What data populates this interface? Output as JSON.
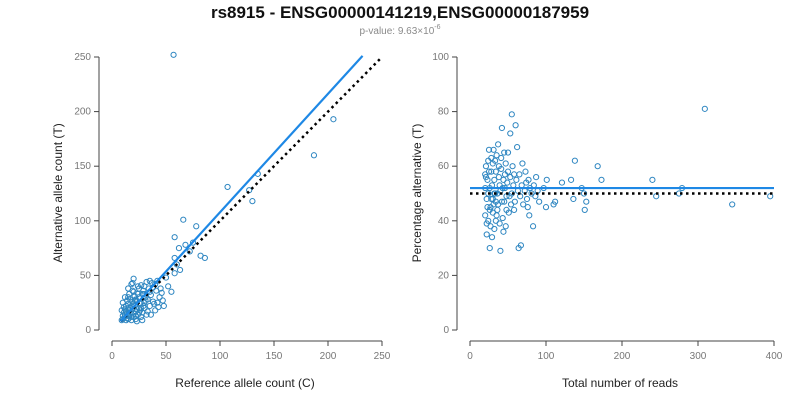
{
  "header": {
    "title": "rs8915 - ENSG00000141219,ENSG00000187959",
    "pvalue_prefix": "p-value: 9.63×10",
    "pvalue_exponent": "-6"
  },
  "colors": {
    "points": "#2e86c1",
    "fit_line": "#1e88e5",
    "reference_line": "#000000",
    "axis": "#444444"
  },
  "chart_data": [
    {
      "type": "scatter",
      "xlabel": "Reference allele count (C)",
      "ylabel": "Alternative allele count (T)",
      "xlim": [
        0,
        250
      ],
      "ylim": [
        0,
        250
      ],
      "xticks": [
        0,
        50,
        100,
        150,
        200,
        250
      ],
      "yticks": [
        0,
        50,
        100,
        150,
        200,
        250
      ],
      "fit_line": {
        "style": "solid",
        "from": [
          8,
          8
        ],
        "to": [
          232,
          251
        ]
      },
      "reference_line": {
        "style": "dotted",
        "from": [
          8,
          8
        ],
        "to": [
          250,
          250
        ]
      },
      "points": [
        [
          57,
          252
        ],
        [
          205,
          193
        ],
        [
          187,
          160
        ],
        [
          135,
          143
        ],
        [
          127,
          128
        ],
        [
          107,
          131
        ],
        [
          130,
          118
        ],
        [
          78,
          95
        ],
        [
          66,
          101
        ],
        [
          58,
          85
        ],
        [
          68,
          78
        ],
        [
          62,
          75
        ],
        [
          75,
          80
        ],
        [
          72,
          72
        ],
        [
          82,
          68
        ],
        [
          86,
          66
        ],
        [
          58,
          66
        ],
        [
          60,
          60
        ],
        [
          63,
          55
        ],
        [
          58,
          52
        ],
        [
          50,
          48
        ],
        [
          40,
          42
        ],
        [
          45,
          38
        ],
        [
          35,
          45
        ],
        [
          30,
          40
        ],
        [
          55,
          35
        ],
        [
          42,
          25
        ],
        [
          48,
          22
        ],
        [
          20,
          47
        ],
        [
          18,
          42
        ],
        [
          25,
          38
        ],
        [
          15,
          38
        ],
        [
          20,
          35
        ],
        [
          28,
          33
        ],
        [
          12,
          30
        ],
        [
          10,
          25
        ],
        [
          22,
          28
        ],
        [
          25,
          30
        ],
        [
          30,
          25
        ],
        [
          18,
          22
        ],
        [
          15,
          20
        ],
        [
          25,
          20
        ],
        [
          30,
          20
        ],
        [
          35,
          22
        ],
        [
          40,
          18
        ],
        [
          20,
          15
        ],
        [
          12,
          12
        ],
        [
          15,
          10
        ],
        [
          18,
          12
        ],
        [
          22,
          10
        ],
        [
          10,
          10
        ],
        [
          14,
          15
        ],
        [
          16,
          18
        ],
        [
          24,
          14
        ],
        [
          28,
          16
        ],
        [
          32,
          14
        ],
        [
          26,
          24
        ],
        [
          19,
          26
        ],
        [
          13,
          22
        ],
        [
          11,
          16
        ],
        [
          17,
          28
        ],
        [
          21,
          31
        ],
        [
          9,
          18
        ],
        [
          23,
          19
        ],
        [
          27,
          12
        ],
        [
          33,
          28
        ],
        [
          36,
          32
        ],
        [
          38,
          26
        ],
        [
          44,
          30
        ],
        [
          46,
          34
        ],
        [
          52,
          40
        ],
        [
          14,
          27
        ],
        [
          16,
          33
        ],
        [
          20,
          24
        ],
        [
          24,
          33
        ],
        [
          29,
          36
        ],
        [
          31,
          30
        ],
        [
          34,
          38
        ],
        [
          37,
          43
        ],
        [
          11,
          21
        ],
        [
          13,
          17
        ],
        [
          15,
          14
        ],
        [
          19,
          19
        ],
        [
          21,
          22
        ],
        [
          23,
          26
        ],
        [
          26,
          18
        ],
        [
          29,
          22
        ],
        [
          12,
          14
        ],
        [
          17,
          16
        ],
        [
          22,
          17
        ],
        [
          18,
          9
        ],
        [
          16,
          13
        ],
        [
          14,
          11
        ],
        [
          20,
          12
        ],
        [
          25,
          16
        ],
        [
          27,
          20
        ],
        [
          10,
          13
        ],
        [
          13,
          9
        ],
        [
          21,
          27
        ],
        [
          30,
          33
        ],
        [
          33,
          17
        ],
        [
          39,
          24
        ],
        [
          43,
          21
        ],
        [
          47,
          27
        ],
        [
          24,
          40
        ],
        [
          19,
          43
        ],
        [
          41,
          36
        ],
        [
          36,
          14
        ],
        [
          28,
          9
        ],
        [
          23,
          8
        ],
        [
          9,
          9
        ],
        [
          12,
          19
        ],
        [
          15,
          24
        ],
        [
          17,
          20
        ],
        [
          22,
          13
        ],
        [
          26,
          29
        ],
        [
          31,
          27
        ],
        [
          35,
          35
        ],
        [
          15,
          30
        ],
        [
          19,
          36
        ],
        [
          27,
          41
        ],
        [
          32,
          44
        ],
        [
          38,
          39
        ],
        [
          42,
          45
        ]
      ]
    },
    {
      "type": "scatter",
      "xlabel": "Total number of reads",
      "ylabel": "Percentage alternative (T)",
      "xlim": [
        0,
        400
      ],
      "ylim": [
        0,
        100
      ],
      "xticks": [
        0,
        100,
        200,
        300,
        400
      ],
      "yticks": [
        0,
        20,
        40,
        60,
        80,
        100
      ],
      "fit_line": {
        "style": "solid",
        "from": [
          0,
          52
        ],
        "to": [
          400,
          52
        ]
      },
      "reference_line": {
        "style": "dotted",
        "from": [
          0,
          50
        ],
        "to": [
          400,
          50
        ]
      },
      "points": [
        [
          309,
          81
        ],
        [
          395,
          49
        ],
        [
          345,
          46
        ],
        [
          279,
          52
        ],
        [
          275,
          50
        ],
        [
          245,
          49
        ],
        [
          240,
          55
        ],
        [
          173,
          55
        ],
        [
          168,
          60
        ],
        [
          153,
          47
        ],
        [
          151,
          44
        ],
        [
          150,
          50
        ],
        [
          147,
          52
        ],
        [
          138,
          62
        ],
        [
          136,
          48
        ],
        [
          133,
          55
        ],
        [
          121,
          54
        ],
        [
          112,
          47
        ],
        [
          110,
          46
        ],
        [
          101,
          55
        ],
        [
          100,
          45
        ],
        [
          97,
          52
        ],
        [
          91,
          47
        ],
        [
          87,
          56
        ],
        [
          83,
          38
        ],
        [
          78,
          42
        ],
        [
          77,
          55
        ],
        [
          75,
          48
        ],
        [
          73,
          58
        ],
        [
          69,
          61
        ],
        [
          67,
          31
        ],
        [
          64,
          30
        ],
        [
          62,
          67
        ],
        [
          60,
          75
        ],
        [
          58,
          44
        ],
        [
          55,
          79
        ],
        [
          53,
          72
        ],
        [
          50,
          65
        ],
        [
          48,
          49
        ],
        [
          46,
          57
        ],
        [
          44,
          36
        ],
        [
          42,
          74
        ],
        [
          40,
          29
        ],
        [
          38,
          60
        ],
        [
          36,
          50
        ],
        [
          34,
          40
        ],
        [
          32,
          55
        ],
        [
          30,
          48
        ],
        [
          28,
          58
        ],
        [
          27,
          45
        ],
        [
          26,
          52
        ],
        [
          25,
          66
        ],
        [
          24,
          40
        ],
        [
          23,
          55
        ],
        [
          22,
          48
        ],
        [
          21,
          60
        ],
        [
          20,
          52
        ],
        [
          20,
          42
        ],
        [
          22,
          35
        ],
        [
          24,
          62
        ],
        [
          26,
          30
        ],
        [
          28,
          63
        ],
        [
          30,
          43
        ],
        [
          32,
          37
        ],
        [
          34,
          58
        ],
        [
          35,
          64
        ],
        [
          37,
          46
        ],
        [
          39,
          53
        ],
        [
          41,
          59
        ],
        [
          43,
          52
        ],
        [
          45,
          47
        ],
        [
          47,
          61
        ],
        [
          49,
          54
        ],
        [
          51,
          43
        ],
        [
          53,
          56
        ],
        [
          55,
          50
        ],
        [
          57,
          53
        ],
        [
          59,
          47
        ],
        [
          61,
          55
        ],
        [
          63,
          51
        ],
        [
          65,
          57
        ],
        [
          66,
          49
        ],
        [
          68,
          53
        ],
        [
          70,
          46
        ],
        [
          72,
          51
        ],
        [
          74,
          54
        ],
        [
          76,
          45
        ],
        [
          79,
          52
        ],
        [
          81,
          50
        ],
        [
          84,
          53
        ],
        [
          86,
          49
        ],
        [
          89,
          51
        ],
        [
          21,
          56
        ],
        [
          23,
          45
        ],
        [
          25,
          58
        ],
        [
          27,
          38
        ],
        [
          29,
          53
        ],
        [
          31,
          46
        ],
        [
          33,
          62
        ],
        [
          36,
          44
        ],
        [
          38,
          56
        ],
        [
          40,
          51
        ],
        [
          42,
          47
        ],
        [
          44,
          55
        ],
        [
          46,
          52
        ],
        [
          48,
          44
        ],
        [
          50,
          58
        ],
        [
          52,
          49
        ],
        [
          54,
          46
        ],
        [
          56,
          60
        ],
        [
          58,
          57
        ],
        [
          29,
          34
        ],
        [
          31,
          66
        ],
        [
          33,
          50
        ],
        [
          35,
          42
        ],
        [
          37,
          68
        ],
        [
          39,
          39
        ],
        [
          41,
          63
        ],
        [
          43,
          41
        ],
        [
          45,
          65
        ],
        [
          47,
          38
        ],
        [
          24,
          50
        ],
        [
          26,
          44
        ],
        [
          28,
          48
        ],
        [
          30,
          61
        ],
        [
          32,
          50
        ],
        [
          34,
          47
        ],
        [
          22,
          39
        ],
        [
          20,
          57
        ]
      ]
    }
  ]
}
